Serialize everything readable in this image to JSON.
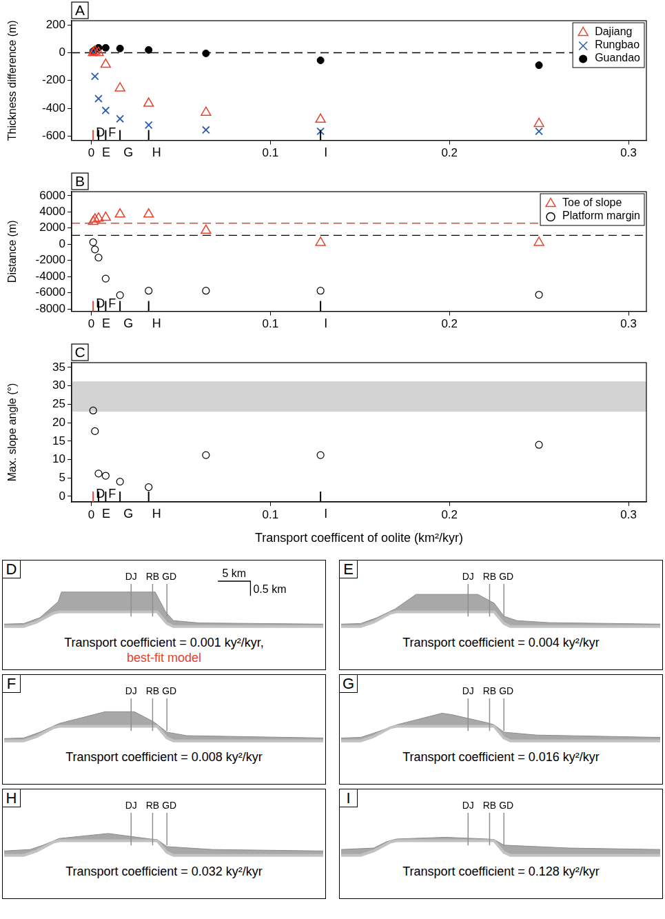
{
  "chart_data": [
    {
      "type": "scatter",
      "panel_label": "A",
      "y_label": "Thickness difference (m)",
      "x": [
        0.001,
        0.002,
        0.004,
        0.008,
        0.016,
        0.032,
        0.064,
        0.128,
        0.25
      ],
      "series": [
        {
          "name": "Dajiang",
          "color": "#e8412c",
          "marker": "triangle_open",
          "values": [
            0,
            10,
            0,
            -85,
            -255,
            -365,
            -430,
            -480,
            -510
          ]
        },
        {
          "name": "Rungbao",
          "color": "#2a5db0",
          "marker": "x",
          "values": [
            0,
            -170,
            -330,
            -415,
            -475,
            -520,
            -555,
            -565,
            -565
          ]
        },
        {
          "name": "Guandao",
          "color": "#000000",
          "marker": "circle_filled",
          "values": [
            10,
            20,
            35,
            35,
            30,
            20,
            -5,
            -55,
            -90
          ]
        }
      ],
      "xlim": [
        -0.011,
        0.31
      ],
      "xticks": [
        0,
        0.1,
        0.2,
        0.3
      ],
      "ylim": [
        -630,
        230
      ],
      "yticks": [
        -600,
        -400,
        -200,
        0,
        200
      ],
      "grid": false,
      "legend": "top-right",
      "reference_lines": [
        {
          "y": 0,
          "color": "#000000",
          "line_style": "dashed"
        }
      ],
      "model_markers": [
        {
          "label": "D",
          "x": 0.001,
          "color": "#e8412c"
        },
        {
          "label": "E",
          "x": 0.004,
          "color": "#000000"
        },
        {
          "label": "F",
          "x": 0.008,
          "color": "#000000"
        },
        {
          "label": "G",
          "x": 0.016,
          "color": "#000000"
        },
        {
          "label": "H",
          "x": 0.032,
          "color": "#000000"
        },
        {
          "label": "I",
          "x": 0.128,
          "color": "#000000"
        }
      ]
    },
    {
      "type": "scatter",
      "panel_label": "B",
      "y_label": "Distance (m)",
      "x": [
        0.001,
        0.002,
        0.004,
        0.008,
        0.016,
        0.032,
        0.064,
        0.128,
        0.25
      ],
      "series": [
        {
          "name": "Toe of slope",
          "color": "#e8412c",
          "marker": "triangle_open",
          "values": [
            2800,
            3100,
            3200,
            3300,
            3700,
            3700,
            1700,
            200,
            200
          ]
        },
        {
          "name": "Platform margin",
          "color": "#000000",
          "marker": "circle_open",
          "values": [
            250,
            -650,
            -1650,
            -4250,
            -6300,
            -5750,
            -5750,
            -5750,
            -6250
          ]
        }
      ],
      "xlim": [
        -0.011,
        0.31
      ],
      "xticks": [
        0,
        0.1,
        0.2,
        0.3
      ],
      "ylim": [
        -8300,
        6500
      ],
      "yticks": [
        -8000,
        -6000,
        -4000,
        -2000,
        0,
        2000,
        4000,
        6000
      ],
      "grid": false,
      "legend": "top-right",
      "reference_lines": [
        {
          "y": 2600,
          "color": "#e8412c",
          "line_style": "dashed"
        },
        {
          "y": 1100,
          "color": "#000000",
          "line_style": "dashed"
        }
      ],
      "model_markers": [
        {
          "label": "D",
          "x": 0.001,
          "color": "#e8412c"
        },
        {
          "label": "E",
          "x": 0.004,
          "color": "#000000"
        },
        {
          "label": "F",
          "x": 0.008,
          "color": "#000000"
        },
        {
          "label": "G",
          "x": 0.016,
          "color": "#000000"
        },
        {
          "label": "H",
          "x": 0.032,
          "color": "#000000"
        },
        {
          "label": "I",
          "x": 0.128,
          "color": "#000000"
        }
      ]
    },
    {
      "type": "scatter",
      "panel_label": "C",
      "y_label": "Max. slope angle (°)",
      "x_label": "Transport coefficent of oolite (km²/kyr)",
      "x": [
        0.001,
        0.002,
        0.004,
        0.008,
        0.016,
        0.032,
        0.064,
        0.128,
        0.25
      ],
      "values": [
        23.3,
        17.7,
        6.2,
        5.6,
        4.0,
        2.5,
        11.2,
        11.2,
        14.0
      ],
      "color": "#000000",
      "marker": "circle_open",
      "xlim": [
        -0.011,
        0.31
      ],
      "xticks": [
        0,
        0.1,
        0.2,
        0.3
      ],
      "ylim": [
        -1.5,
        36.3
      ],
      "yticks": [
        0,
        5,
        10,
        15,
        20,
        25,
        30,
        35
      ],
      "grid": false,
      "shaded_range": {
        "from": 23,
        "to": 31.2,
        "color": "#d3d3d3"
      },
      "model_markers": [
        {
          "label": "D",
          "x": 0.001,
          "color": "#e8412c"
        },
        {
          "label": "E",
          "x": 0.004,
          "color": "#000000"
        },
        {
          "label": "F",
          "x": 0.008,
          "color": "#000000"
        },
        {
          "label": "G",
          "x": 0.016,
          "color": "#000000"
        },
        {
          "label": "H",
          "x": 0.032,
          "color": "#000000"
        },
        {
          "label": "I",
          "x": 0.128,
          "color": "#000000"
        }
      ]
    },
    {
      "type": "area",
      "panel_label": "D",
      "title": "Transport coefficient = 0.001 ky²/kyr,",
      "annotation": {
        "text": "best-fit model",
        "color": "#e8412c"
      },
      "surface": {
        "x": [
          0,
          3,
          5.5,
          8.3,
          8.8,
          23.2,
          24.8,
          26,
          30,
          49
        ],
        "values": [
          0.08,
          0.1,
          0.3,
          0.85,
          1.18,
          1.18,
          0.5,
          0.2,
          0.12,
          0.08
        ]
      },
      "base": {
        "x": [
          0,
          3,
          5,
          7.5,
          8.5,
          23.5,
          25,
          26,
          49
        ],
        "values": [
          0,
          0,
          0.15,
          0.45,
          0.5,
          0.5,
          0.1,
          0,
          0
        ]
      },
      "xlim": [
        0,
        49
      ],
      "ylim": [
        -0.15,
        1.6
      ],
      "tick_labels": false,
      "wells": [
        {
          "label": "DJ",
          "x": 19.5
        },
        {
          "label": "RB",
          "x": 22.8
        },
        {
          "label": "GD",
          "x": 25.0
        }
      ],
      "scale_bar": {
        "x": 5,
        "y": 0.5,
        "x_label": "5 km",
        "y_label": "0.5 km"
      }
    },
    {
      "type": "area",
      "panel_label": "E",
      "title": "Transport coefficient = 0.004 ky²/kyr",
      "surface": {
        "x": [
          0,
          3,
          5.5,
          8.3,
          11.5,
          21,
          23.5,
          25,
          27,
          32,
          49
        ],
        "values": [
          0.08,
          0.1,
          0.3,
          0.6,
          1.1,
          1.1,
          0.8,
          0.35,
          0.2,
          0.13,
          0.08
        ]
      },
      "base": {
        "x": [
          0,
          3,
          5,
          7.5,
          8.5,
          23.5,
          25,
          26,
          49
        ],
        "values": [
          0,
          0,
          0.15,
          0.45,
          0.5,
          0.5,
          0.1,
          0,
          0
        ]
      },
      "xlim": [
        0,
        49
      ],
      "ylim": [
        -0.15,
        1.6
      ],
      "tick_labels": false,
      "wells": [
        {
          "label": "DJ",
          "x": 19.5
        },
        {
          "label": "RB",
          "x": 22.8
        },
        {
          "label": "GD",
          "x": 25.0
        }
      ]
    },
    {
      "type": "area",
      "panel_label": "F",
      "title": "Transport coefficient = 0.008 ky²/kyr",
      "surface": {
        "x": [
          0,
          3,
          5.5,
          8.5,
          15.5,
          20,
          23,
          25,
          28,
          49
        ],
        "values": [
          0.08,
          0.1,
          0.3,
          0.6,
          1.0,
          1.0,
          0.65,
          0.3,
          0.18,
          0.1
        ]
      },
      "base": {
        "x": [
          0,
          3,
          5,
          7.5,
          8.5,
          23.5,
          25,
          26,
          49
        ],
        "values": [
          0,
          0,
          0.15,
          0.45,
          0.5,
          0.5,
          0.1,
          0,
          0
        ]
      },
      "xlim": [
        0,
        49
      ],
      "ylim": [
        -0.15,
        1.6
      ],
      "tick_labels": false,
      "wells": [
        {
          "label": "DJ",
          "x": 19.5
        },
        {
          "label": "RB",
          "x": 22.8
        },
        {
          "label": "GD",
          "x": 25.0
        }
      ]
    },
    {
      "type": "area",
      "panel_label": "G",
      "title": "Transport coefficient = 0.016 ky²/kyr",
      "surface": {
        "x": [
          0,
          3,
          5.5,
          8.5,
          15.5,
          17,
          22.5,
          23.5,
          25,
          30,
          49
        ],
        "values": [
          0.1,
          0.12,
          0.3,
          0.55,
          0.95,
          0.9,
          0.62,
          0.55,
          0.3,
          0.2,
          0.12
        ]
      },
      "base": {
        "x": [
          0,
          3,
          5,
          7.5,
          8.5,
          23.5,
          25,
          26,
          49
        ],
        "values": [
          0,
          0,
          0.15,
          0.45,
          0.5,
          0.5,
          0.1,
          0,
          0
        ]
      },
      "xlim": [
        0,
        49
      ],
      "ylim": [
        -0.15,
        1.6
      ],
      "tick_labels": false,
      "wells": [
        {
          "label": "DJ",
          "x": 19.5
        },
        {
          "label": "RB",
          "x": 22.8
        },
        {
          "label": "GD",
          "x": 25.0
        }
      ]
    },
    {
      "type": "area",
      "panel_label": "H",
      "title": "Transport coefficient = 0.032 ky²/kyr",
      "surface": {
        "x": [
          0,
          4,
          6,
          8.5,
          16,
          22.5,
          23.5,
          25,
          32,
          49
        ],
        "values": [
          0.15,
          0.2,
          0.35,
          0.58,
          0.75,
          0.56,
          0.54,
          0.3,
          0.2,
          0.15
        ]
      },
      "base": {
        "x": [
          0,
          3,
          5,
          7.5,
          8.5,
          23.5,
          25,
          26,
          49
        ],
        "values": [
          0,
          0,
          0.15,
          0.45,
          0.5,
          0.5,
          0.1,
          0,
          0
        ]
      },
      "xlim": [
        0,
        49
      ],
      "ylim": [
        -0.15,
        1.6
      ],
      "tick_labels": false,
      "wells": [
        {
          "label": "DJ",
          "x": 19.5
        },
        {
          "label": "RB",
          "x": 22.8
        },
        {
          "label": "GD",
          "x": 25.0
        }
      ]
    },
    {
      "type": "area",
      "panel_label": "I",
      "title": "Transport coefficient = 0.128 ky²/kyr",
      "surface": {
        "x": [
          0,
          5,
          7,
          8.5,
          16,
          22.5,
          23.5,
          25,
          35,
          49
        ],
        "values": [
          0.2,
          0.25,
          0.47,
          0.56,
          0.62,
          0.56,
          0.54,
          0.35,
          0.25,
          0.2
        ]
      },
      "base": {
        "x": [
          0,
          3,
          5,
          7.5,
          8.5,
          23.5,
          25,
          26,
          49
        ],
        "values": [
          0,
          0,
          0.15,
          0.45,
          0.5,
          0.5,
          0.1,
          0,
          0
        ]
      },
      "xlim": [
        0,
        49
      ],
      "ylim": [
        -0.15,
        1.6
      ],
      "tick_labels": false,
      "wells": [
        {
          "label": "DJ",
          "x": 19.5
        },
        {
          "label": "RB",
          "x": 22.8
        },
        {
          "label": "GD",
          "x": 25.0
        }
      ]
    }
  ]
}
